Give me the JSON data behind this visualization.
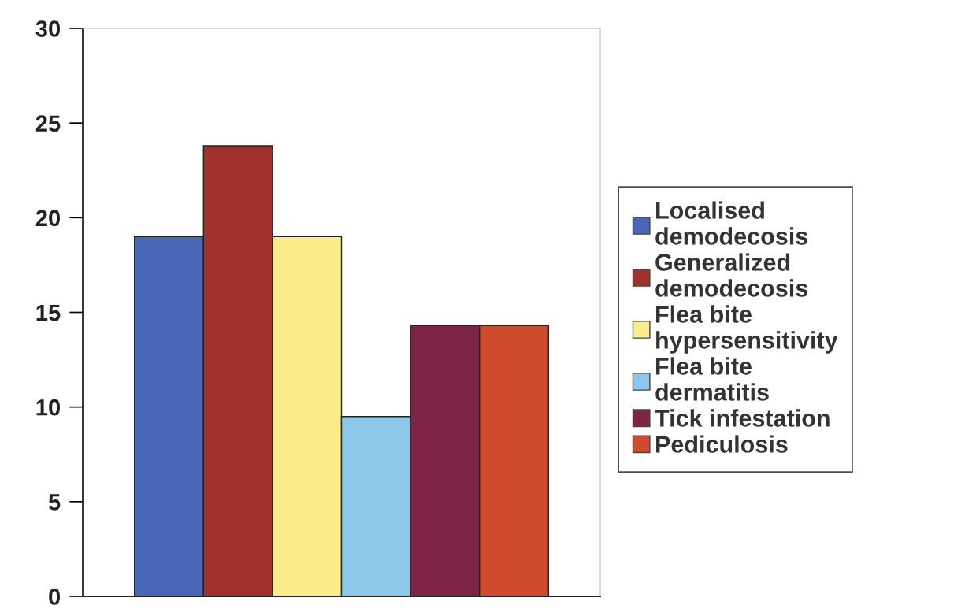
{
  "chart_data": {
    "type": "bar",
    "categories": [
      null
    ],
    "series": [
      {
        "name": "Localised demodecosis",
        "color": "#4a66b8",
        "values": [
          19.0
        ]
      },
      {
        "name": "Generalized demodecosis",
        "color": "#a0302a",
        "values": [
          23.8
        ]
      },
      {
        "name": "Flea bite hypersensitivity",
        "color": "#fbeb8a",
        "values": [
          19.0
        ]
      },
      {
        "name": "Flea bite dermatitis",
        "color": "#8cc8ea",
        "values": [
          9.5
        ]
      },
      {
        "name": "Tick infestation",
        "color": "#7e2447",
        "values": [
          14.3
        ]
      },
      {
        "name": "Pediculosis",
        "color": "#d04b2c",
        "values": [
          14.3
        ]
      }
    ],
    "ylim": [
      0,
      30
    ],
    "yticks": [
      0,
      5,
      10,
      15,
      20,
      25,
      30
    ],
    "grid": false,
    "legend": "right"
  }
}
